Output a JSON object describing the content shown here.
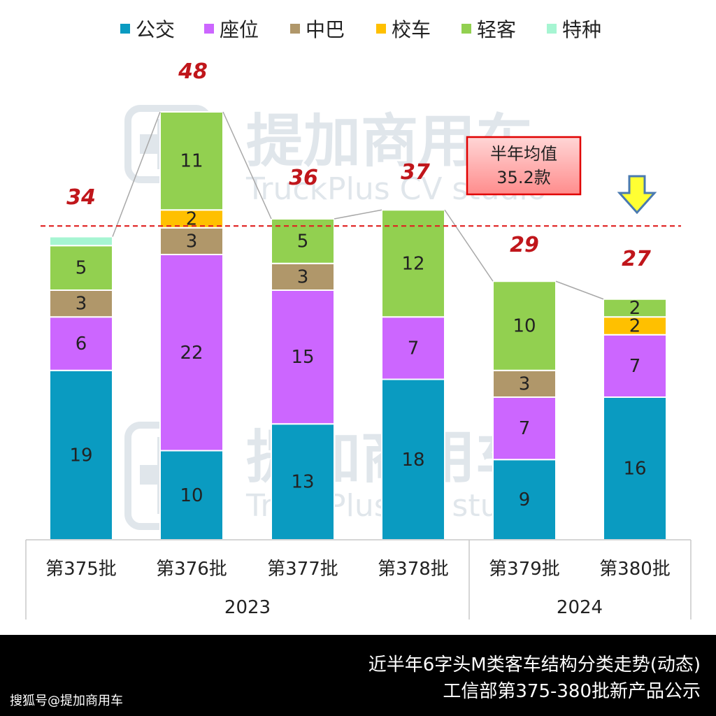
{
  "chart_data": {
    "type": "bar",
    "stacked": true,
    "categories": [
      "第375批",
      "第376批",
      "第377批",
      "第378批",
      "第379批",
      "第380批"
    ],
    "year_groups": [
      {
        "label": "2023",
        "span": [
          0,
          3
        ]
      },
      {
        "label": "2024",
        "span": [
          4,
          5
        ]
      }
    ],
    "series": [
      {
        "name": "公交",
        "color": "#0a9bc1",
        "values": [
          19,
          10,
          13,
          18,
          9,
          16
        ]
      },
      {
        "name": "座位",
        "color": "#cc66ff",
        "values": [
          6,
          22,
          15,
          7,
          7,
          7
        ]
      },
      {
        "name": "中巴",
        "color": "#b0976a",
        "values": [
          3,
          3,
          3,
          0,
          3,
          0
        ]
      },
      {
        "name": "校车",
        "color": "#ffc000",
        "values": [
          0,
          2,
          0,
          0,
          0,
          2
        ]
      },
      {
        "name": "轻客",
        "color": "#92d050",
        "values": [
          5,
          11,
          5,
          12,
          10,
          2
        ]
      },
      {
        "name": "特种",
        "color": "#a6f5d2",
        "values": [
          1,
          0,
          0,
          0,
          0,
          0
        ]
      }
    ],
    "totals": [
      34,
      48,
      36,
      37,
      29,
      27
    ],
    "average_line": {
      "value": 35.2,
      "label_line1": "半年均值",
      "label_line2": "35.2款",
      "color": "#e02020"
    },
    "ylim": [
      0,
      48
    ],
    "legend_position": "top",
    "grid": false,
    "highlight_arrow_category": "第380批"
  },
  "watermark": {
    "chinese": "提加商用车",
    "english": "TruckPlus CV studio"
  },
  "footer": {
    "title_line1": "近半年6字头M类客车结构分类走势(动态)",
    "title_line2": "工信部第375-380批新产品公示",
    "source": "搜狐号@提加商用车"
  }
}
